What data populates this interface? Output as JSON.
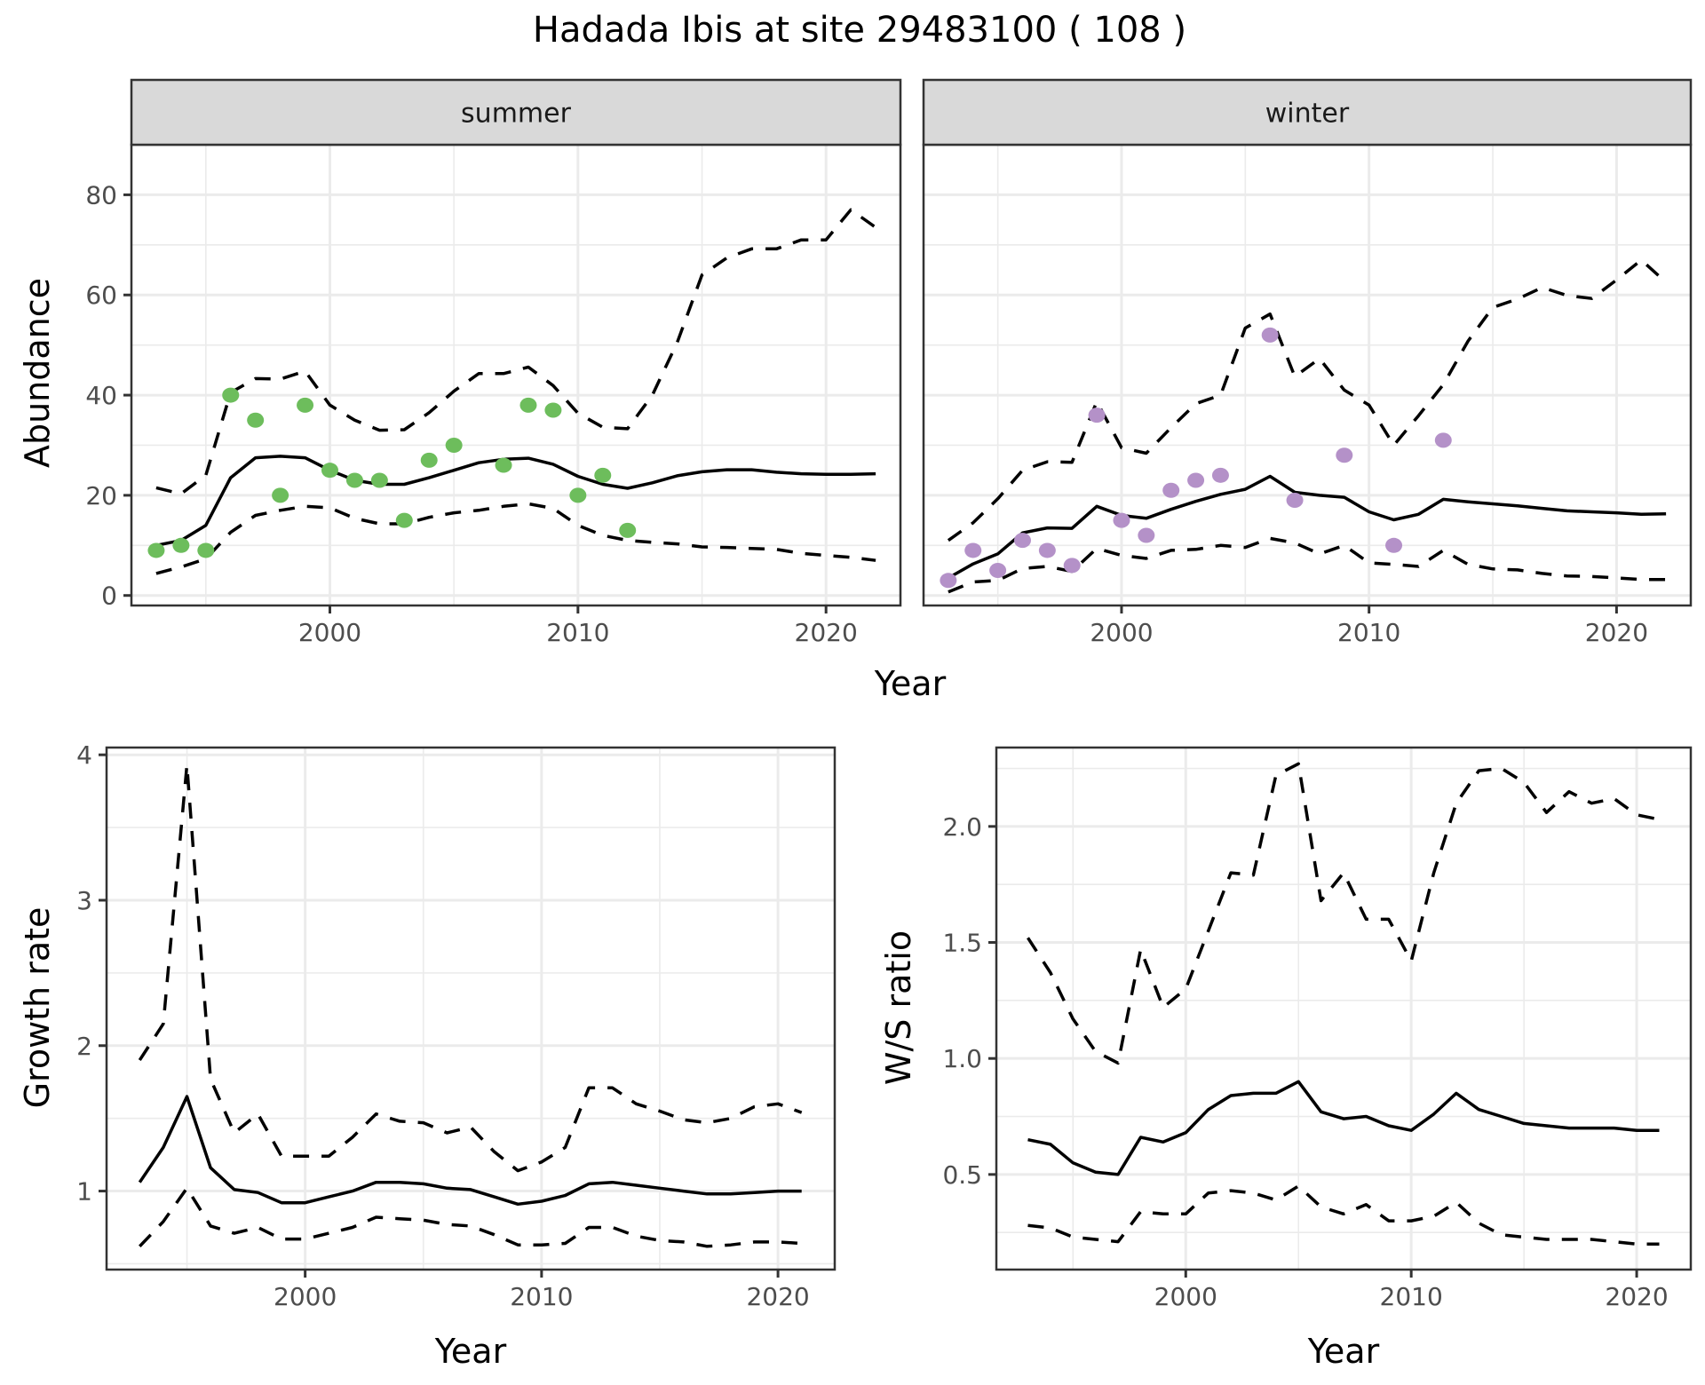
{
  "chart_data": {
    "title": "Hadada Ibis at site 29483100 ( 108 )",
    "panels": [
      {
        "id": "summer",
        "type": "line",
        "facet_label": "summer",
        "xlabel": "Year",
        "ylabel": "Abundance",
        "xlim": [
          1992,
          2023
        ],
        "ylim": [
          -2,
          90
        ],
        "xticks": [
          2000,
          2010,
          2020
        ],
        "yticks": [
          0,
          20,
          40,
          60,
          80
        ],
        "grid": true,
        "point_color": "#6dbd5c",
        "x": [
          1993,
          1994,
          1995,
          1996,
          1997,
          1998,
          1999,
          2000,
          2001,
          2002,
          2003,
          2004,
          2005,
          2006,
          2007,
          2008,
          2009,
          2010,
          2011,
          2012,
          2013,
          2014,
          2015,
          2016,
          2017,
          2018,
          2019,
          2020,
          2021,
          2022
        ],
        "series": [
          {
            "name": "mean",
            "style": "solid",
            "values": [
              10,
              11,
              14,
              23.5,
              27.5,
              27.8,
              27.5,
              25,
              23,
              22.2,
              22.2,
              23.5,
              25,
              26.5,
              27.2,
              27.4,
              26.2,
              23.8,
              22.2,
              21.4,
              22.5,
              23.9,
              24.7,
              25.1,
              25.1,
              24.6,
              24.3,
              24.2,
              24.2,
              24.3
            ]
          },
          {
            "name": "upper",
            "style": "dashed",
            "values": [
              21.5,
              20.3,
              24,
              40.5,
              43.3,
              43.2,
              44.8,
              38,
              35,
              33,
              33.1,
              36.5,
              40.8,
              44.3,
              44.3,
              45.6,
              41.9,
              36.4,
              33.6,
              33.3,
              40,
              50.5,
              64,
              67.4,
              69.2,
              69.2,
              71,
              71,
              77,
              73.5
            ]
          },
          {
            "name": "lower",
            "style": "dashed",
            "values": [
              4.4,
              5.7,
              7.3,
              12.6,
              16,
              17,
              17.8,
              17.5,
              15.4,
              14.3,
              14.3,
              15.6,
              16.5,
              17,
              17.8,
              18.3,
              17.4,
              14,
              12,
              11,
              10.6,
              10.3,
              9.7,
              9.6,
              9.4,
              9.2,
              8.4,
              8,
              7.6,
              7
            ]
          },
          {
            "name": "observed",
            "style": "points",
            "x": [
              1993,
              1994,
              1995,
              1996,
              1997,
              1998,
              1999,
              2000,
              2001,
              2002,
              2003,
              2004,
              2005,
              2007,
              2008,
              2009,
              2010,
              2011,
              2012
            ],
            "values": [
              9,
              10,
              9,
              40,
              35,
              20,
              38,
              25,
              23,
              23,
              15,
              27,
              30,
              26,
              38,
              37,
              20,
              24,
              13
            ]
          }
        ]
      },
      {
        "id": "winter",
        "type": "line",
        "facet_label": "winter",
        "xlabel": "Year",
        "ylabel": "Abundance",
        "xlim": [
          1992,
          2023
        ],
        "ylim": [
          -2,
          90
        ],
        "xticks": [
          2000,
          2010,
          2020
        ],
        "yticks": [
          0,
          20,
          40,
          60,
          80
        ],
        "grid": true,
        "point_color": "#b491c8",
        "x": [
          1993,
          1994,
          1995,
          1996,
          1997,
          1998,
          1999,
          2000,
          2001,
          2002,
          2003,
          2004,
          2005,
          2006,
          2007,
          2008,
          2009,
          2010,
          2011,
          2012,
          2013,
          2014,
          2015,
          2016,
          2017,
          2018,
          2019,
          2020,
          2021,
          2022
        ],
        "series": [
          {
            "name": "mean",
            "style": "solid",
            "values": [
              3.5,
              6.3,
              8.3,
              12.5,
              13.5,
              13.4,
              17.8,
              16,
              15.4,
              17.2,
              18.8,
              20.2,
              21.2,
              23.8,
              20.6,
              20,
              19.6,
              16.7,
              15.1,
              16.2,
              19.2,
              18.7,
              18.3,
              17.9,
              17.4,
              16.9,
              16.7,
              16.5,
              16.2,
              16.3
            ]
          },
          {
            "name": "upper",
            "style": "dashed",
            "values": [
              11,
              14.5,
              19.3,
              25,
              26.7,
              26.6,
              38.7,
              29.5,
              28.4,
              33.5,
              38.3,
              40,
              53.4,
              56.2,
              43.7,
              47.3,
              41,
              38,
              30,
              35.9,
              42.1,
              50.8,
              57.5,
              59.2,
              61.5,
              59.9,
              59.3,
              63,
              67,
              62.5
            ]
          },
          {
            "name": "lower",
            "style": "dashed",
            "values": [
              0.7,
              2.7,
              3,
              5.4,
              5.8,
              4.8,
              9.4,
              8,
              7.4,
              9,
              9.2,
              10,
              9.6,
              11.4,
              10.5,
              8.3,
              10,
              6.5,
              6.2,
              5.8,
              9,
              6.2,
              5.3,
              5.1,
              4.4,
              3.9,
              3.8,
              3.5,
              3.2,
              3.2
            ]
          },
          {
            "name": "observed",
            "style": "points",
            "x": [
              1993,
              1994,
              1995,
              1996,
              1997,
              1998,
              1999,
              2000,
              2001,
              2002,
              2003,
              2004,
              2006,
              2007,
              2009,
              2011,
              2013
            ],
            "values": [
              3,
              9,
              5,
              11,
              9,
              6,
              36,
              15,
              12,
              21,
              23,
              24,
              52,
              19,
              28,
              10,
              31
            ]
          }
        ]
      },
      {
        "id": "growth",
        "type": "line",
        "xlabel": "Year",
        "ylabel": "Growth rate",
        "xlim": [
          1991.6,
          2022.4
        ],
        "ylim": [
          0.46,
          4.05
        ],
        "xticks": [
          2000,
          2010,
          2020
        ],
        "yticks": [
          1,
          2,
          3,
          4
        ],
        "grid": true,
        "x": [
          1993,
          1994,
          1995,
          1996,
          1997,
          1998,
          1999,
          2000,
          2001,
          2002,
          2003,
          2004,
          2005,
          2006,
          2007,
          2008,
          2009,
          2010,
          2011,
          2012,
          2013,
          2014,
          2015,
          2016,
          2017,
          2018,
          2019,
          2020,
          2021
        ],
        "series": [
          {
            "name": "mean",
            "style": "solid",
            "values": [
              1.06,
              1.3,
              1.65,
              1.16,
              1.01,
              0.99,
              0.92,
              0.92,
              0.96,
              1.0,
              1.06,
              1.06,
              1.05,
              1.02,
              1.01,
              0.96,
              0.91,
              0.93,
              0.97,
              1.05,
              1.06,
              1.04,
              1.02,
              1.0,
              0.98,
              0.98,
              0.99,
              1.0,
              1.0
            ]
          },
          {
            "name": "upper",
            "style": "dashed",
            "values": [
              1.9,
              2.15,
              3.93,
              1.77,
              1.4,
              1.53,
              1.24,
              1.24,
              1.24,
              1.37,
              1.53,
              1.48,
              1.47,
              1.4,
              1.44,
              1.27,
              1.14,
              1.2,
              1.3,
              1.71,
              1.71,
              1.6,
              1.55,
              1.49,
              1.47,
              1.5,
              1.58,
              1.6,
              1.54
            ]
          },
          {
            "name": "lower",
            "style": "dashed",
            "values": [
              0.62,
              0.79,
              1.02,
              0.76,
              0.71,
              0.75,
              0.67,
              0.67,
              0.71,
              0.75,
              0.82,
              0.81,
              0.8,
              0.77,
              0.76,
              0.7,
              0.63,
              0.63,
              0.64,
              0.75,
              0.75,
              0.69,
              0.66,
              0.65,
              0.62,
              0.63,
              0.65,
              0.65,
              0.64
            ]
          }
        ]
      },
      {
        "id": "ws_ratio",
        "type": "line",
        "xlabel": "Year",
        "ylabel": "W/S ratio",
        "xlim": [
          1991.6,
          2022.4
        ],
        "ylim": [
          0.09,
          2.34
        ],
        "xticks": [
          2000,
          2010,
          2020
        ],
        "yticks": [
          0.5,
          1.0,
          1.5,
          2.0
        ],
        "ytick_labels": [
          "0.5",
          "1.0",
          "1.5",
          "2.0"
        ],
        "grid": true,
        "x": [
          1993,
          1994,
          1995,
          1996,
          1997,
          1998,
          1999,
          2000,
          2001,
          2002,
          2003,
          2004,
          2005,
          2006,
          2007,
          2008,
          2009,
          2010,
          2011,
          2012,
          2013,
          2014,
          2015,
          2016,
          2017,
          2018,
          2019,
          2020,
          2021
        ],
        "series": [
          {
            "name": "mean",
            "style": "solid",
            "values": [
              0.65,
              0.63,
              0.55,
              0.51,
              0.5,
              0.66,
              0.64,
              0.68,
              0.78,
              0.84,
              0.85,
              0.85,
              0.9,
              0.77,
              0.74,
              0.75,
              0.71,
              0.69,
              0.76,
              0.85,
              0.78,
              0.75,
              0.72,
              0.71,
              0.7,
              0.7,
              0.7,
              0.69,
              0.69
            ]
          },
          {
            "name": "upper",
            "style": "dashed",
            "values": [
              1.52,
              1.37,
              1.17,
              1.03,
              0.98,
              1.47,
              1.22,
              1.3,
              1.55,
              1.8,
              1.79,
              2.22,
              2.27,
              1.68,
              1.8,
              1.6,
              1.6,
              1.42,
              1.8,
              2.1,
              2.24,
              2.25,
              2.19,
              2.06,
              2.15,
              2.1,
              2.12,
              2.05,
              2.03
            ]
          },
          {
            "name": "lower",
            "style": "dashed",
            "values": [
              0.28,
              0.27,
              0.23,
              0.22,
              0.21,
              0.34,
              0.33,
              0.33,
              0.42,
              0.43,
              0.42,
              0.39,
              0.45,
              0.36,
              0.33,
              0.37,
              0.3,
              0.3,
              0.32,
              0.38,
              0.29,
              0.24,
              0.23,
              0.22,
              0.22,
              0.22,
              0.21,
              0.2,
              0.2
            ]
          }
        ]
      }
    ]
  }
}
